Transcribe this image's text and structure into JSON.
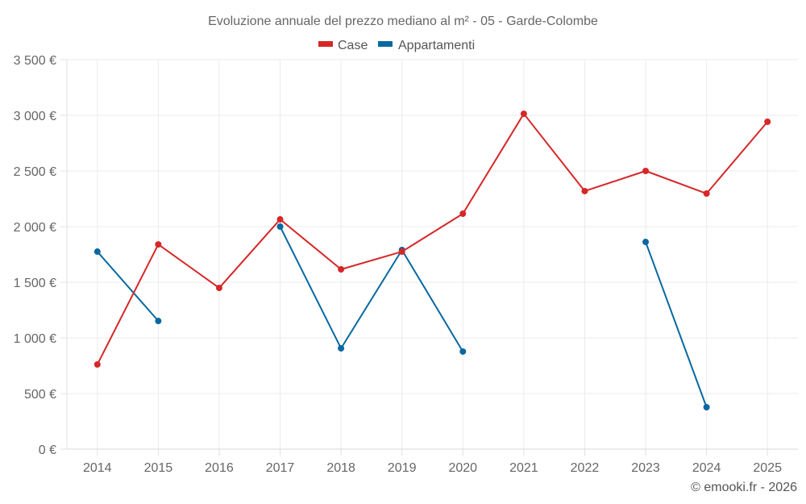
{
  "chart_data": {
    "type": "line",
    "title": "Evoluzione annuale del prezzo mediano al m² - 05 - Garde-Colombe",
    "xlabel": "",
    "ylabel": "",
    "x": [
      "2014",
      "2015",
      "2016",
      "2017",
      "2018",
      "2019",
      "2020",
      "2021",
      "2022",
      "2023",
      "2024",
      "2025"
    ],
    "ylim": [
      0,
      3500
    ],
    "yticks": [
      0,
      500,
      1000,
      1500,
      2000,
      2500,
      3000,
      3500
    ],
    "ytick_labels": [
      "0 €",
      "500 €",
      "1 000 €",
      "1 500 €",
      "2 000 €",
      "2 500 €",
      "3 000 €",
      "3 500 €"
    ],
    "grid": true,
    "legend_position": "top-center",
    "series": [
      {
        "name": "Case",
        "color": "#d62728",
        "values": [
          761,
          1840,
          1449,
          2065,
          1616,
          1775,
          2116,
          3014,
          2319,
          2500,
          2297,
          2942
        ]
      },
      {
        "name": "Appartamenti",
        "color": "#0868a0",
        "values": [
          1775,
          1152,
          null,
          2000,
          906,
          1790,
          877,
          null,
          null,
          1862,
          377,
          null
        ]
      }
    ],
    "credit": "© emooki.fr - 2026"
  }
}
